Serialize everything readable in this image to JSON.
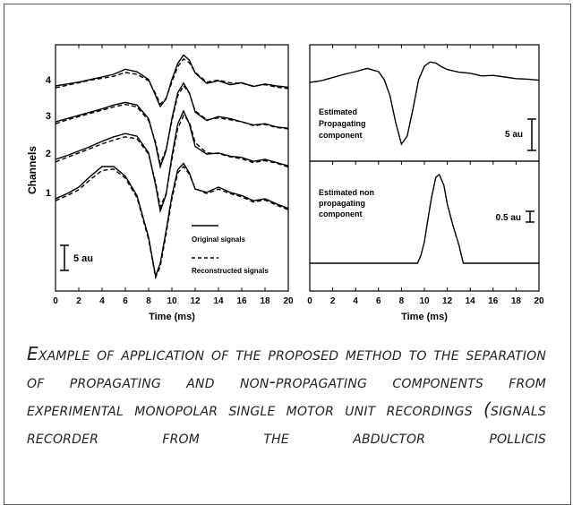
{
  "chart_data": [
    {
      "type": "line",
      "x_ticks": [
        0,
        2,
        4,
        6,
        8,
        10,
        12,
        14,
        16,
        18,
        20
      ],
      "xlim": [
        0,
        20
      ],
      "xlabel": "Time (ms)",
      "ylabel": "Channels",
      "channel_labels": [
        "4",
        "3",
        "2",
        "1"
      ],
      "scale_bar_label": "5 au",
      "legend": [
        {
          "label": "Original signals",
          "style": "solid"
        },
        {
          "label": "Reconstructed signals",
          "style": "dashed"
        }
      ],
      "series": [
        {
          "name": "Original signals",
          "channel": "4",
          "x": [
            0,
            1,
            2,
            3,
            4,
            5,
            6,
            7,
            8,
            8.6,
            9,
            9.5,
            10,
            10.5,
            11,
            11.5,
            12,
            13,
            14,
            15,
            16,
            17,
            18,
            19,
            20
          ],
          "y": [
            0,
            0.3,
            0.6,
            1.0,
            1.4,
            1.8,
            2.6,
            2.2,
            1.0,
            -1.5,
            -3.2,
            -2.0,
            1.0,
            3.5,
            4.8,
            4.0,
            2.0,
            0.4,
            0.8,
            0.2,
            0.5,
            -0.1,
            0.3,
            0.0,
            -0.2
          ]
        },
        {
          "name": "Reconstructed signals",
          "channel": "4",
          "x": [
            0,
            1,
            2,
            3,
            4,
            5,
            6,
            7,
            8,
            8.6,
            9,
            9.5,
            10,
            10.5,
            11,
            11.5,
            12,
            13,
            14,
            15,
            16,
            17,
            18,
            19,
            20
          ],
          "y": [
            -0.3,
            0.1,
            0.5,
            0.9,
            1.2,
            1.5,
            2.1,
            1.8,
            0.8,
            -1.2,
            -2.8,
            -1.9,
            0.6,
            3.0,
            4.2,
            3.6,
            2.1,
            0.6,
            0.9,
            0.5,
            0.4,
            0.0,
            0.2,
            -0.2,
            -0.4
          ]
        },
        {
          "name": "Original signals",
          "channel": "3",
          "x": [
            0,
            1,
            2,
            3,
            4,
            5,
            6,
            7,
            8,
            8.6,
            9,
            9.5,
            10,
            10.5,
            11,
            11.5,
            12,
            13,
            14,
            15,
            16,
            17,
            18,
            19,
            20
          ],
          "y": [
            0,
            0.5,
            1.0,
            1.5,
            2.0,
            2.6,
            3.0,
            2.6,
            0.5,
            -3.5,
            -7.0,
            -4.5,
            0.5,
            4.5,
            6.0,
            4.5,
            1.5,
            0.2,
            0.8,
            0.5,
            0.0,
            -0.5,
            -0.3,
            -0.8,
            -1.0
          ]
        },
        {
          "name": "Reconstructed signals",
          "channel": "3",
          "x": [
            0,
            1,
            2,
            3,
            4,
            5,
            6,
            7,
            8,
            8.6,
            9,
            9.5,
            10,
            10.5,
            11,
            11.5,
            12,
            13,
            14,
            15,
            16,
            17,
            18,
            19,
            20
          ],
          "y": [
            -0.3,
            0.3,
            0.8,
            1.3,
            1.8,
            2.3,
            2.7,
            2.3,
            0.2,
            -3.2,
            -6.5,
            -4.3,
            0.2,
            4.0,
            5.6,
            4.4,
            1.7,
            0.3,
            0.6,
            0.3,
            0.0,
            -0.6,
            -0.4,
            -0.9,
            -1.1
          ]
        },
        {
          "name": "Original signals",
          "channel": "2",
          "x": [
            0,
            1,
            2,
            3,
            4,
            5,
            6,
            7,
            8,
            8.6,
            9,
            9.5,
            10,
            10.5,
            11,
            11.5,
            12,
            13,
            14,
            15,
            16,
            17,
            18,
            19,
            20
          ],
          "y": [
            0,
            0.6,
            1.3,
            2.0,
            2.8,
            3.5,
            4.0,
            3.6,
            1.0,
            -4.0,
            -8.0,
            -5.5,
            0.5,
            5.5,
            7.5,
            5.5,
            2.0,
            0.8,
            1.0,
            0.5,
            0.3,
            -0.3,
            0.0,
            -0.5,
            -1.0
          ]
        },
        {
          "name": "Reconstructed signals",
          "channel": "2",
          "x": [
            0,
            1,
            2,
            3,
            4,
            5,
            6,
            7,
            8,
            8.6,
            9,
            9.5,
            10,
            10.5,
            11,
            11.5,
            12,
            13,
            14,
            15,
            16,
            17,
            18,
            19,
            20
          ],
          "y": [
            -0.4,
            0.3,
            1.0,
            1.7,
            2.4,
            3.0,
            3.5,
            3.2,
            0.8,
            -3.6,
            -7.4,
            -5.3,
            0.0,
            4.8,
            6.8,
            5.8,
            2.6,
            1.0,
            0.9,
            0.4,
            0.1,
            -0.5,
            -0.2,
            -0.6,
            -1.2
          ]
        },
        {
          "name": "Original signals",
          "channel": "1",
          "x": [
            0,
            1,
            2,
            3,
            4,
            5,
            6,
            7,
            8,
            8.6,
            9,
            9.5,
            10,
            10.5,
            11,
            11.5,
            12,
            13,
            14,
            15,
            16,
            17,
            18,
            19,
            20
          ],
          "y": [
            0,
            0.8,
            1.8,
            3.5,
            5.0,
            5.0,
            3.5,
            0.5,
            -6.0,
            -12.0,
            -10.0,
            -5.0,
            0.5,
            4.5,
            5.5,
            4.0,
            1.5,
            1.0,
            1.8,
            1.0,
            0.5,
            -0.3,
            0.0,
            -0.8,
            -1.5
          ]
        },
        {
          "name": "Reconstructed signals",
          "channel": "1",
          "x": [
            0,
            1,
            2,
            3,
            4,
            5,
            6,
            7,
            8,
            8.6,
            9,
            9.5,
            10,
            10.5,
            11,
            11.5,
            12,
            13,
            14,
            15,
            16,
            17,
            18,
            19,
            20
          ],
          "y": [
            -0.3,
            0.5,
            1.4,
            3.0,
            4.4,
            4.6,
            3.2,
            0.2,
            -6.3,
            -12.2,
            -10.5,
            -5.5,
            0.0,
            4.0,
            5.0,
            3.8,
            1.6,
            0.8,
            1.5,
            0.8,
            0.3,
            -0.5,
            -0.2,
            -1.0,
            -1.7
          ]
        }
      ]
    },
    {
      "type": "line",
      "x_ticks": [
        0,
        2,
        4,
        6,
        8,
        10,
        12,
        14,
        16,
        18,
        20
      ],
      "xlim": [
        0,
        20
      ],
      "xlabel": "Time (ms)",
      "panels": [
        {
          "label_lines": [
            "Estimated",
            "Propagating",
            "component"
          ],
          "scale_bar_label": "5 au",
          "x": [
            0,
            1,
            2,
            3,
            4,
            5,
            6,
            6.5,
            7,
            7.5,
            8,
            8.5,
            9,
            9.5,
            10,
            10.5,
            11,
            11.5,
            12,
            13,
            14,
            15,
            16,
            17,
            18,
            19,
            20
          ],
          "y": [
            0,
            0.3,
            0.9,
            1.5,
            2.0,
            2.6,
            2.0,
            0.5,
            -2.5,
            -7.5,
            -11.5,
            -10.0,
            -5.0,
            0.5,
            3.0,
            3.8,
            3.6,
            2.9,
            2.4,
            1.9,
            1.7,
            1.2,
            1.3,
            1.0,
            0.7,
            0.6,
            0.4
          ]
        },
        {
          "label_lines": [
            "Estimated non",
            "propagating",
            "component"
          ],
          "scale_bar_label": "0.5 au",
          "x": [
            0,
            9.4,
            9.7,
            10,
            10.3,
            10.6,
            11,
            11.3,
            11.7,
            12,
            12.5,
            13,
            13.4,
            20
          ],
          "y": [
            0,
            0,
            0.15,
            0.4,
            0.8,
            1.2,
            1.6,
            1.65,
            1.45,
            1.1,
            0.7,
            0.35,
            0,
            0
          ]
        }
      ]
    }
  ],
  "caption": "Example of application of the proposed method to the separation of propagating and non-propagating components from experimental monopolar single motor unit recordings (signals recorder from the abductor pollicis"
}
